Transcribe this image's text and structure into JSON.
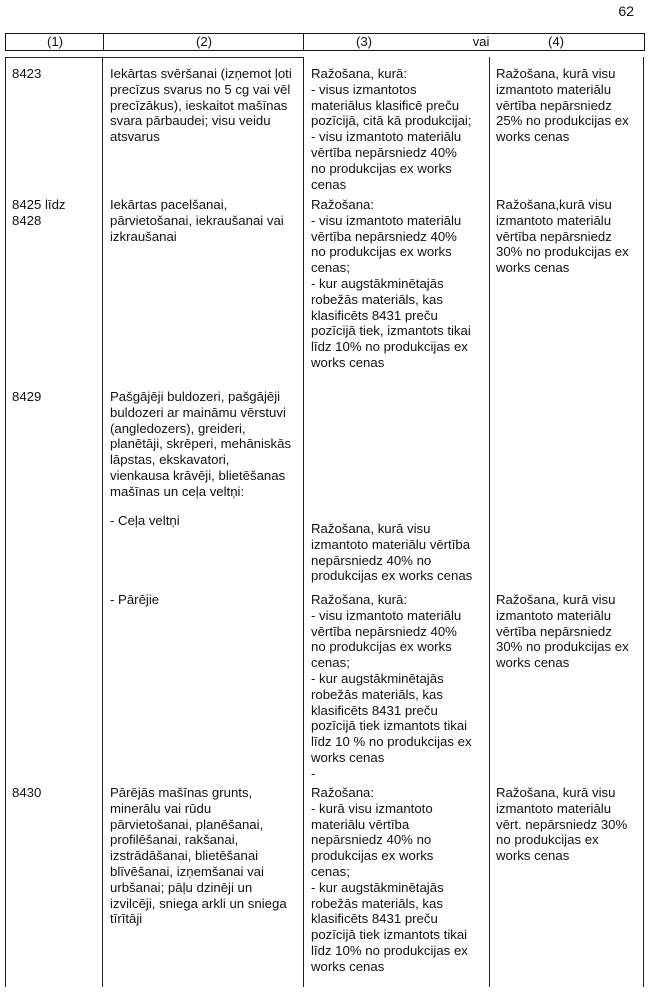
{
  "page_number": "62",
  "header": {
    "col1": "(1)",
    "col2": "(2)",
    "col3": "(3)",
    "or": "vai",
    "col4": "(4)"
  },
  "rows": [
    {
      "code": "8423",
      "description": "Iekārtas svēršanai (izņemot ļoti\nprecīzus svarus no 5 cg vai vēl\nprecīzākus), ieskaitot mašīnas\nsvara pārbaudei; visu veidu\natsvarus",
      "rule3": "Ražošana, kurā:\n- visus izmantotos\nmateriālus klasificē preču\npozīcijā, citā kā produkcijai;\n- visu izmantoto materiālu\nvērtība nepārsniedz 40%\nno produkcijas ex works\ncenas",
      "rule4": "Ražošana, kurā visu\nizmantoto materiālu\nvērtība nepārsniedz\n25% no produkcijas ex\nworks cenas"
    },
    {
      "code": "8425 līdz\n8428",
      "description": "Iekārtas pacelšanai,\npārvietošanai, iekraušanai vai\nizkraušanai",
      "rule3": "Ražošana:\n- visu izmantoto materiālu\nvērtība nepārsniedz 40%\nno produkcijas ex works\ncenas;\n- kur augstākminētajās\nrobežās materiāls, kas\nklasificēts 8431 preču\npozīcijā tiek, izmantots tikai\nlīdz 10% no produkcijas ex\nworks cenas",
      "rule4": "Ražošana,kurā visu\nizmantoto materiālu\nvērtība nepārsniedz\n30% no produkcijas ex\nworks cenas"
    },
    {
      "code": "8429",
      "description": "Pašgājēji buldozeri, pašgājēji\nbuldozeri ar maināmu vērstuvi\n(angledozers), greideri,\nplanētāji, skrēperi, mehāniskās\nlāpstas, ekskavatori,\nvienkausa krāvēji, blietēšanas\nmašīnas un ceļa veltņi:",
      "rule3": "",
      "rule4": ""
    },
    {
      "code": "",
      "description": "- Ceļa veltņi",
      "rule3": "Ražošana, kurā visu\nizmantoto materiālu vērtība\nnepārsniedz 40% no\nprodukcijas ex works cenas",
      "rule4": ""
    },
    {
      "code": "",
      "description": "- Pārējie",
      "rule3": "Ražošana, kurā:\n- visu izmantoto materiālu\nvērtība nepārsniedz 40%\nno produkcijas ex works\ncenas;\n- kur augstākminētajās\nrobežās materiāls, kas\nklasificēts 8431 preču\npozīcijā tiek izmantots tikai\nlīdz 10 % no produkcijas ex\nworks cenas\n-",
      "rule4": "Ražošana, kurā visu\nizmantoto materiālu\nvērtība nepārsniedz\n30% no produkcijas ex\nworks cenas"
    },
    {
      "code": "8430",
      "description": "Pārējās mašīnas grunts,\nminerālu vai rūdu\npārvietošanai, planēšanai,\nprofilēšanai, rakšanai,\nizstrādāšanai, blietēšanai\nblīvēšanai, izņemšanai vai\nurbšanai; pāļu dzinēji un\nizvilcēji, sniega arkli un sniega\ntīrītāji",
      "rule3": "Ražošana:\n- kurā visu izmantoto\nmateriālu vērtība\nnepārsniedz 40% no\nprodukcijas ex works\ncenas;\n- kur augstākminētajās\nrobežās materiāls, kas\nklasificēts 8431 preču\npozīcijā tiek izmantots tikai\nlīdz 10% no produkcijas ex\nworks cenas",
      "rule4": "Ražošana, kurā visu\nizmantoto materiālu\nvērt. nepārsniedz 30%\nno produkcijas ex\nworks cenas"
    }
  ]
}
